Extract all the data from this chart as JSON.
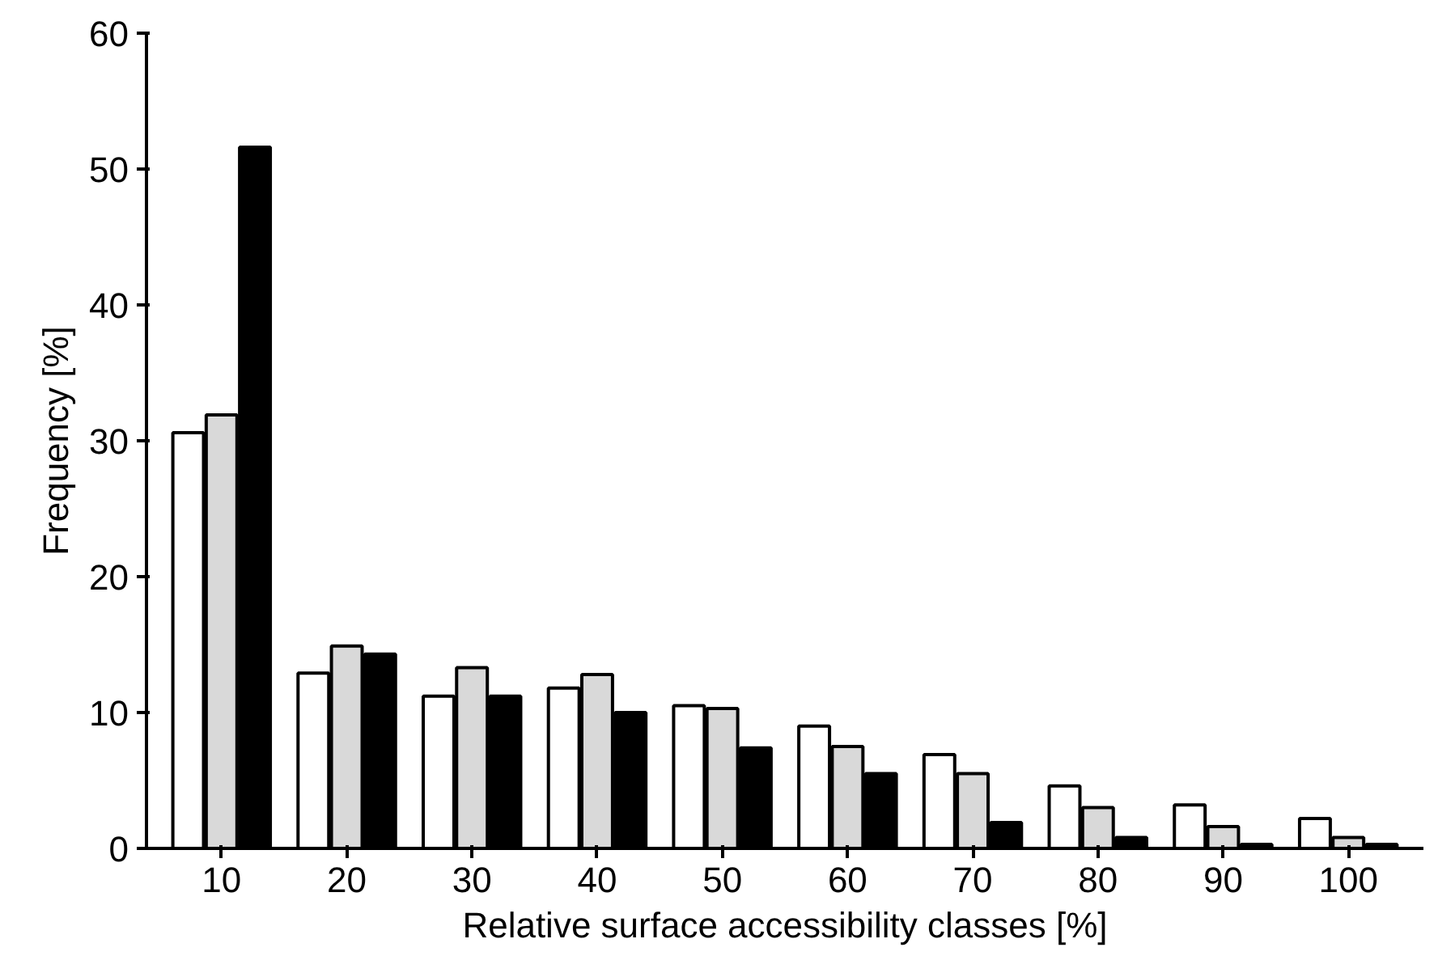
{
  "chart_data": {
    "type": "bar",
    "xlabel": "Relative surface accessibility classes [%]",
    "ylabel": "Frequency [%]",
    "categories": [
      "10",
      "20",
      "30",
      "40",
      "50",
      "60",
      "70",
      "80",
      "90",
      "100"
    ],
    "series": [
      {
        "color": "#ffffff",
        "values": [
          30.6,
          12.9,
          11.2,
          11.8,
          10.5,
          9.0,
          6.9,
          4.6,
          3.2,
          2.2
        ]
      },
      {
        "color": "#d9d9d9",
        "values": [
          31.9,
          14.9,
          13.3,
          12.8,
          10.3,
          7.5,
          5.5,
          3.0,
          1.6,
          0.8
        ]
      },
      {
        "color": "#000000",
        "values": [
          51.6,
          14.3,
          11.2,
          10.0,
          7.4,
          5.5,
          1.9,
          0.8,
          0.3,
          0.3
        ]
      }
    ],
    "ylim": [
      0,
      60
    ],
    "yticks": [
      0,
      10,
      20,
      30,
      40,
      50,
      60
    ],
    "grid": false
  }
}
